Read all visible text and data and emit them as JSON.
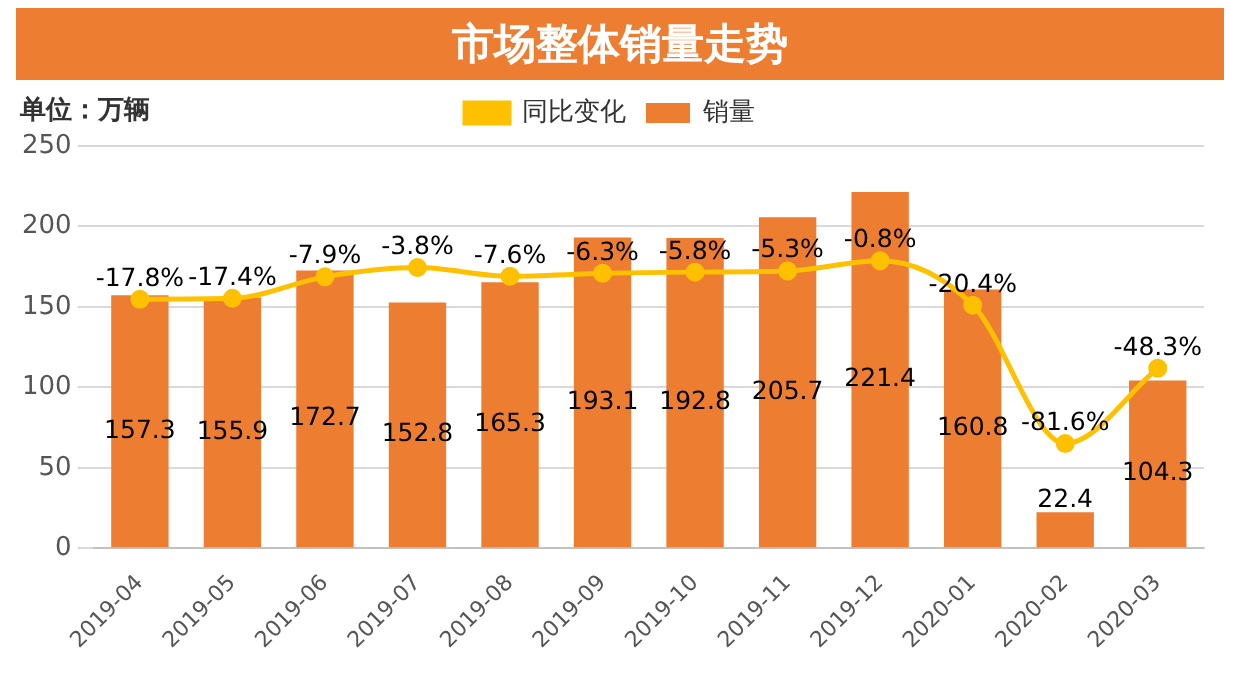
{
  "chart_data": {
    "type": "bar",
    "title": "市场整体销量走势",
    "annotations": [
      "单位：万辆"
    ],
    "categories": [
      "2019-04",
      "2019-05",
      "2019-06",
      "2019-07",
      "2019-08",
      "2019-09",
      "2019-10",
      "2019-11",
      "2019-12",
      "2020-01",
      "2020-02",
      "2020-03"
    ],
    "series": [
      {
        "name": "销量",
        "color": "#ed7d31",
        "values": [
          157.3,
          155.9,
          172.7,
          152.8,
          165.3,
          193.1,
          192.8,
          205.7,
          221.4,
          160.8,
          22.4,
          104.3
        ]
      },
      {
        "name": "同比变化",
        "type": "line",
        "axis": "y2",
        "color": "#ffc000",
        "marker": "circle",
        "values": [
          -17.8,
          -17.4,
          -7.9,
          -3.8,
          -7.6,
          -6.3,
          -5.8,
          -5.3,
          -0.8,
          -20.4,
          -81.6,
          -48.3
        ],
        "value_labels": [
          "-17.8%",
          "-17.4%",
          "-7.9%",
          "-3.8%",
          "-7.6%",
          "-6.3%",
          "-5.8%",
          "-5.3%",
          "-0.8%",
          "-20.4%",
          "-81.6%",
          "-48.3%"
        ]
      }
    ],
    "data_labels": true,
    "ylim": [
      0,
      250
    ],
    "yticks": [
      0,
      50,
      100,
      150,
      200,
      250
    ],
    "y2lim": [
      -128,
      50
    ],
    "grid": "y",
    "legend": "top"
  }
}
